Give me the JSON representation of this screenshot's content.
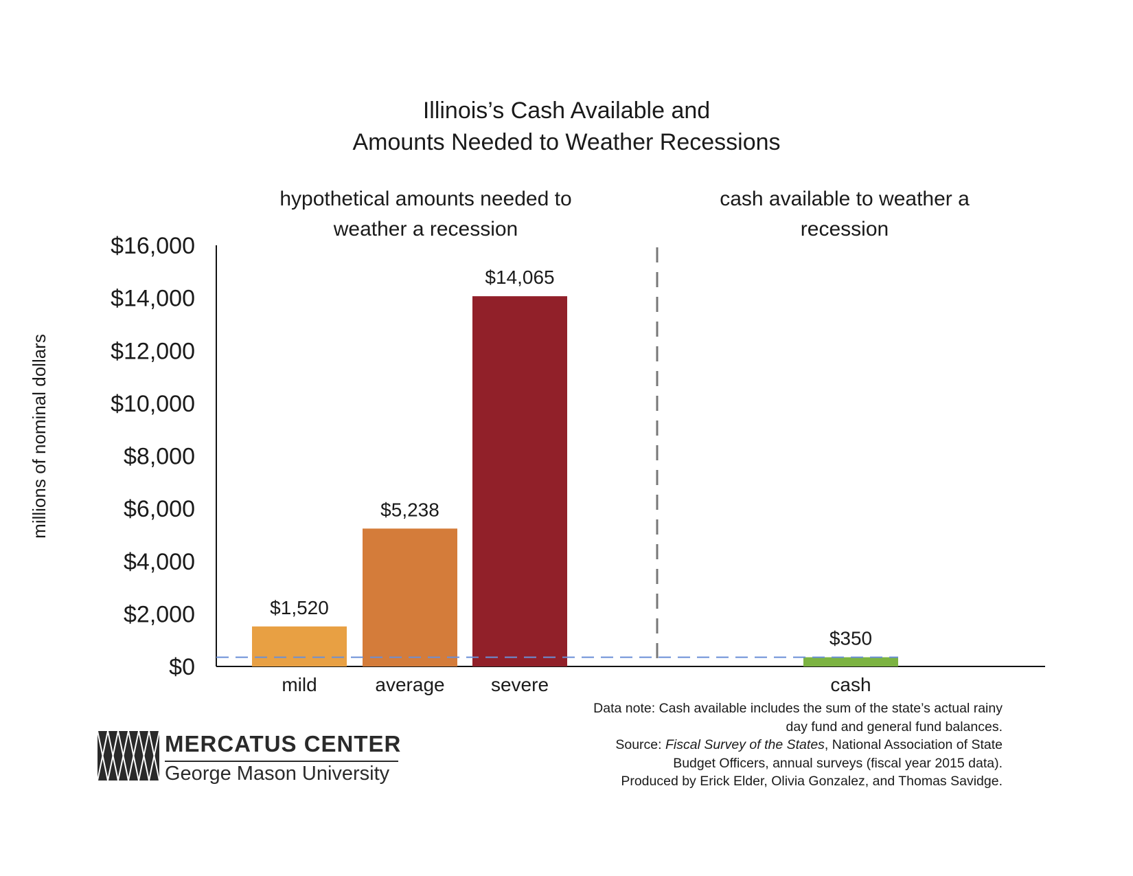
{
  "title_line1": "Illinois’s Cash Available and",
  "title_line2": "Amounts Needed to Weather Recessions",
  "section_left_line1": "hypothetical amounts needed to",
  "section_left_line2": "weather a recession",
  "section_right_line1": "cash available to weather a",
  "section_right_line2": "recession",
  "notes": {
    "line1": "Data note: Cash available includes the sum of the state’s actual rainy",
    "line2": "day fund and general fund balances.",
    "source_prefix": "Source: ",
    "source_italic": "Fiscal Survey of the States",
    "source_rest": ", National Association of State",
    "line4": "Budget Officers, annual surveys (fiscal year 2015 data).",
    "line5": "Produced by Erick Elder, Olivia Gonzalez, and Thomas Savidge."
  },
  "logo": {
    "name": "MERCATUS CENTER",
    "subtitle": "George Mason University"
  },
  "chart_data": {
    "type": "bar",
    "title": "Illinois’s Cash Available and Amounts Needed to Weather Recessions",
    "ylabel": "millions of nominal dollars",
    "xlabel": "",
    "ylim": [
      0,
      16000
    ],
    "yticks": [
      0,
      2000,
      4000,
      6000,
      8000,
      10000,
      12000,
      14000,
      16000
    ],
    "ytick_labels": [
      "$0",
      "$2,000",
      "$4,000",
      "$6,000",
      "$8,000",
      "$10,000",
      "$12,000",
      "$14,000",
      "$16,000"
    ],
    "grid": false,
    "categories": [
      "mild",
      "average",
      "severe",
      "cash"
    ],
    "values": [
      1520,
      5238,
      14065,
      350
    ],
    "value_labels": [
      "$1,520",
      "$5,238",
      "$14,065",
      "$350"
    ],
    "colors": [
      "#E8A043",
      "#D47C3A",
      "#912029",
      "#7CB342"
    ],
    "reference_line": {
      "value": 350,
      "style": "dashed",
      "color": "#6A8FD6"
    },
    "divider_color": "#777777"
  }
}
